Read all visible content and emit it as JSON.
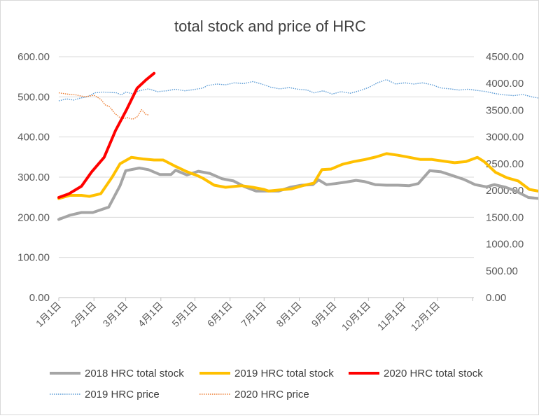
{
  "chart_data": {
    "type": "line",
    "title": "total stock and price of HRC",
    "x_categories": [
      "1月1日",
      "2月1日",
      "3月1日",
      "4月1日",
      "5月1日",
      "6月1日",
      "7月1日",
      "8月1日",
      "9月1日",
      "10月1日",
      "11月1日",
      "12月1日"
    ],
    "y_left": {
      "min": 0,
      "max": 600,
      "step": 100,
      "tick_labels": [
        "0.00",
        "100.00",
        "200.00",
        "300.00",
        "400.00",
        "500.00",
        "600.00"
      ]
    },
    "y_right": {
      "min": 0,
      "max": 4500,
      "step": 500,
      "tick_labels": [
        "0.00",
        "500.00",
        "1000.00",
        "1500.00",
        "2000.00",
        "2500.00",
        "3000.00",
        "3500.00",
        "4000.00",
        "4500.00"
      ]
    },
    "grid": "horizontal",
    "legend_position": "bottom",
    "series": [
      {
        "name": "2018 HRC total stock",
        "axis": "right",
        "color": "#a5a5a5",
        "style": "solid",
        "points": [
          [
            1,
            1460
          ],
          [
            11,
            1540
          ],
          [
            21,
            1590
          ],
          [
            31,
            1590
          ],
          [
            45,
            1690
          ],
          [
            55,
            2090
          ],
          [
            60,
            2370
          ],
          [
            72,
            2420
          ],
          [
            80,
            2390
          ],
          [
            90,
            2300
          ],
          [
            100,
            2300
          ],
          [
            104,
            2380
          ],
          [
            114,
            2290
          ],
          [
            124,
            2360
          ],
          [
            134,
            2320
          ],
          [
            145,
            2220
          ],
          [
            155,
            2180
          ],
          [
            165,
            2070
          ],
          [
            175,
            1990
          ],
          [
            185,
            1990
          ],
          [
            195,
            1990
          ],
          [
            205,
            2060
          ],
          [
            215,
            2100
          ],
          [
            225,
            2110
          ],
          [
            230,
            2200
          ],
          [
            237,
            2110
          ],
          [
            245,
            2130
          ],
          [
            255,
            2160
          ],
          [
            263,
            2190
          ],
          [
            270,
            2170
          ],
          [
            280,
            2110
          ],
          [
            290,
            2100
          ],
          [
            300,
            2100
          ],
          [
            310,
            2090
          ],
          [
            318,
            2130
          ],
          [
            328,
            2370
          ],
          [
            338,
            2350
          ],
          [
            348,
            2280
          ],
          [
            358,
            2210
          ],
          [
            368,
            2110
          ],
          [
            378,
            2070
          ],
          [
            385,
            2110
          ],
          [
            395,
            2060
          ],
          [
            405,
            1980
          ],
          [
            415,
            1870
          ],
          [
            425,
            1850
          ],
          [
            430,
            1780
          ]
        ]
      },
      {
        "name": "2019 HRC total stock",
        "axis": "right",
        "color": "#ffc000",
        "style": "solid",
        "points": [
          [
            1,
            1850
          ],
          [
            11,
            1910
          ],
          [
            21,
            1910
          ],
          [
            28,
            1890
          ],
          [
            38,
            1940
          ],
          [
            48,
            2250
          ],
          [
            55,
            2500
          ],
          [
            65,
            2620
          ],
          [
            75,
            2590
          ],
          [
            85,
            2570
          ],
          [
            93,
            2570
          ],
          [
            103,
            2460
          ],
          [
            113,
            2360
          ],
          [
            123,
            2280
          ],
          [
            128,
            2230
          ],
          [
            138,
            2100
          ],
          [
            148,
            2060
          ],
          [
            162,
            2090
          ],
          [
            172,
            2060
          ],
          [
            182,
            2020
          ],
          [
            186,
            1990
          ],
          [
            196,
            2010
          ],
          [
            206,
            2030
          ],
          [
            216,
            2090
          ],
          [
            226,
            2140
          ],
          [
            233,
            2390
          ],
          [
            241,
            2400
          ],
          [
            251,
            2490
          ],
          [
            261,
            2540
          ],
          [
            271,
            2580
          ],
          [
            281,
            2630
          ],
          [
            290,
            2690
          ],
          [
            300,
            2660
          ],
          [
            310,
            2620
          ],
          [
            320,
            2580
          ],
          [
            330,
            2580
          ],
          [
            340,
            2550
          ],
          [
            350,
            2520
          ],
          [
            360,
            2540
          ],
          [
            370,
            2620
          ],
          [
            376,
            2540
          ],
          [
            386,
            2340
          ],
          [
            396,
            2240
          ],
          [
            406,
            2180
          ],
          [
            416,
            2020
          ],
          [
            426,
            1980
          ],
          [
            436,
            1940
          ],
          [
            446,
            1930
          ],
          [
            456,
            1830
          ],
          [
            466,
            1830
          ],
          [
            476,
            1870
          ]
        ]
      },
      {
        "name": "2020 HRC total stock",
        "axis": "right",
        "color": "#ff0000",
        "style": "solid",
        "points": [
          [
            1,
            1870
          ],
          [
            10,
            1940
          ],
          [
            21,
            2080
          ],
          [
            30,
            2350
          ],
          [
            41,
            2620
          ],
          [
            51,
            3120
          ],
          [
            61,
            3520
          ],
          [
            70,
            3910
          ],
          [
            78,
            4070
          ],
          [
            85,
            4190
          ]
        ]
      },
      {
        "name": "2019 HRC price",
        "axis": "left",
        "color": "#5b9bd5",
        "style": "dotted",
        "points": [
          [
            1,
            490
          ],
          [
            8,
            495
          ],
          [
            14,
            492
          ],
          [
            20,
            497
          ],
          [
            26,
            500
          ],
          [
            33,
            510
          ],
          [
            40,
            512
          ],
          [
            46,
            511
          ],
          [
            52,
            510
          ],
          [
            56,
            505
          ],
          [
            60,
            512
          ],
          [
            66,
            508
          ],
          [
            72,
            515
          ],
          [
            80,
            520
          ],
          [
            88,
            513
          ],
          [
            96,
            515
          ],
          [
            104,
            519
          ],
          [
            112,
            515
          ],
          [
            120,
            518
          ],
          [
            128,
            522
          ],
          [
            132,
            528
          ],
          [
            140,
            532
          ],
          [
            148,
            530
          ],
          [
            156,
            535
          ],
          [
            164,
            533
          ],
          [
            172,
            538
          ],
          [
            180,
            532
          ],
          [
            188,
            524
          ],
          [
            196,
            520
          ],
          [
            204,
            523
          ],
          [
            212,
            519
          ],
          [
            220,
            517
          ],
          [
            226,
            510
          ],
          [
            234,
            515
          ],
          [
            242,
            507
          ],
          [
            250,
            513
          ],
          [
            258,
            509
          ],
          [
            266,
            515
          ],
          [
            274,
            523
          ],
          [
            282,
            535
          ],
          [
            290,
            543
          ],
          [
            298,
            532
          ],
          [
            306,
            535
          ],
          [
            314,
            532
          ],
          [
            322,
            535
          ],
          [
            330,
            530
          ],
          [
            338,
            522
          ],
          [
            346,
            520
          ],
          [
            354,
            517
          ],
          [
            362,
            519
          ],
          [
            370,
            516
          ],
          [
            378,
            513
          ],
          [
            386,
            508
          ],
          [
            394,
            505
          ],
          [
            402,
            503
          ],
          [
            410,
            506
          ],
          [
            418,
            500
          ],
          [
            426,
            496
          ],
          [
            432,
            490
          ],
          [
            438,
            496
          ],
          [
            446,
            497
          ],
          [
            454,
            495
          ],
          [
            462,
            490
          ],
          [
            470,
            486
          ],
          [
            478,
            483
          ],
          [
            486,
            485
          ],
          [
            494,
            487
          ],
          [
            502,
            485
          ],
          [
            510,
            492
          ],
          [
            518,
            500
          ],
          [
            526,
            510
          ],
          [
            534,
            512
          ],
          [
            542,
            508
          ],
          [
            550,
            510
          ],
          [
            558,
            511
          ],
          [
            566,
            515
          ],
          [
            574,
            514
          ],
          [
            582,
            518
          ],
          [
            590,
            520
          ],
          [
            598,
            508
          ],
          [
            605,
            505
          ]
        ]
      },
      {
        "name": "2020 HRC price",
        "axis": "left",
        "color": "#ed7d31",
        "style": "dotted",
        "points": [
          [
            1,
            510
          ],
          [
            8,
            507
          ],
          [
            16,
            505
          ],
          [
            24,
            500
          ],
          [
            32,
            504
          ],
          [
            38,
            494
          ],
          [
            42,
            480
          ],
          [
            46,
            475
          ],
          [
            50,
            460
          ],
          [
            54,
            450
          ],
          [
            58,
            446
          ],
          [
            62,
            448
          ],
          [
            66,
            444
          ],
          [
            70,
            450
          ],
          [
            74,
            468
          ],
          [
            78,
            456
          ],
          [
            80,
            455
          ]
        ]
      }
    ]
  }
}
